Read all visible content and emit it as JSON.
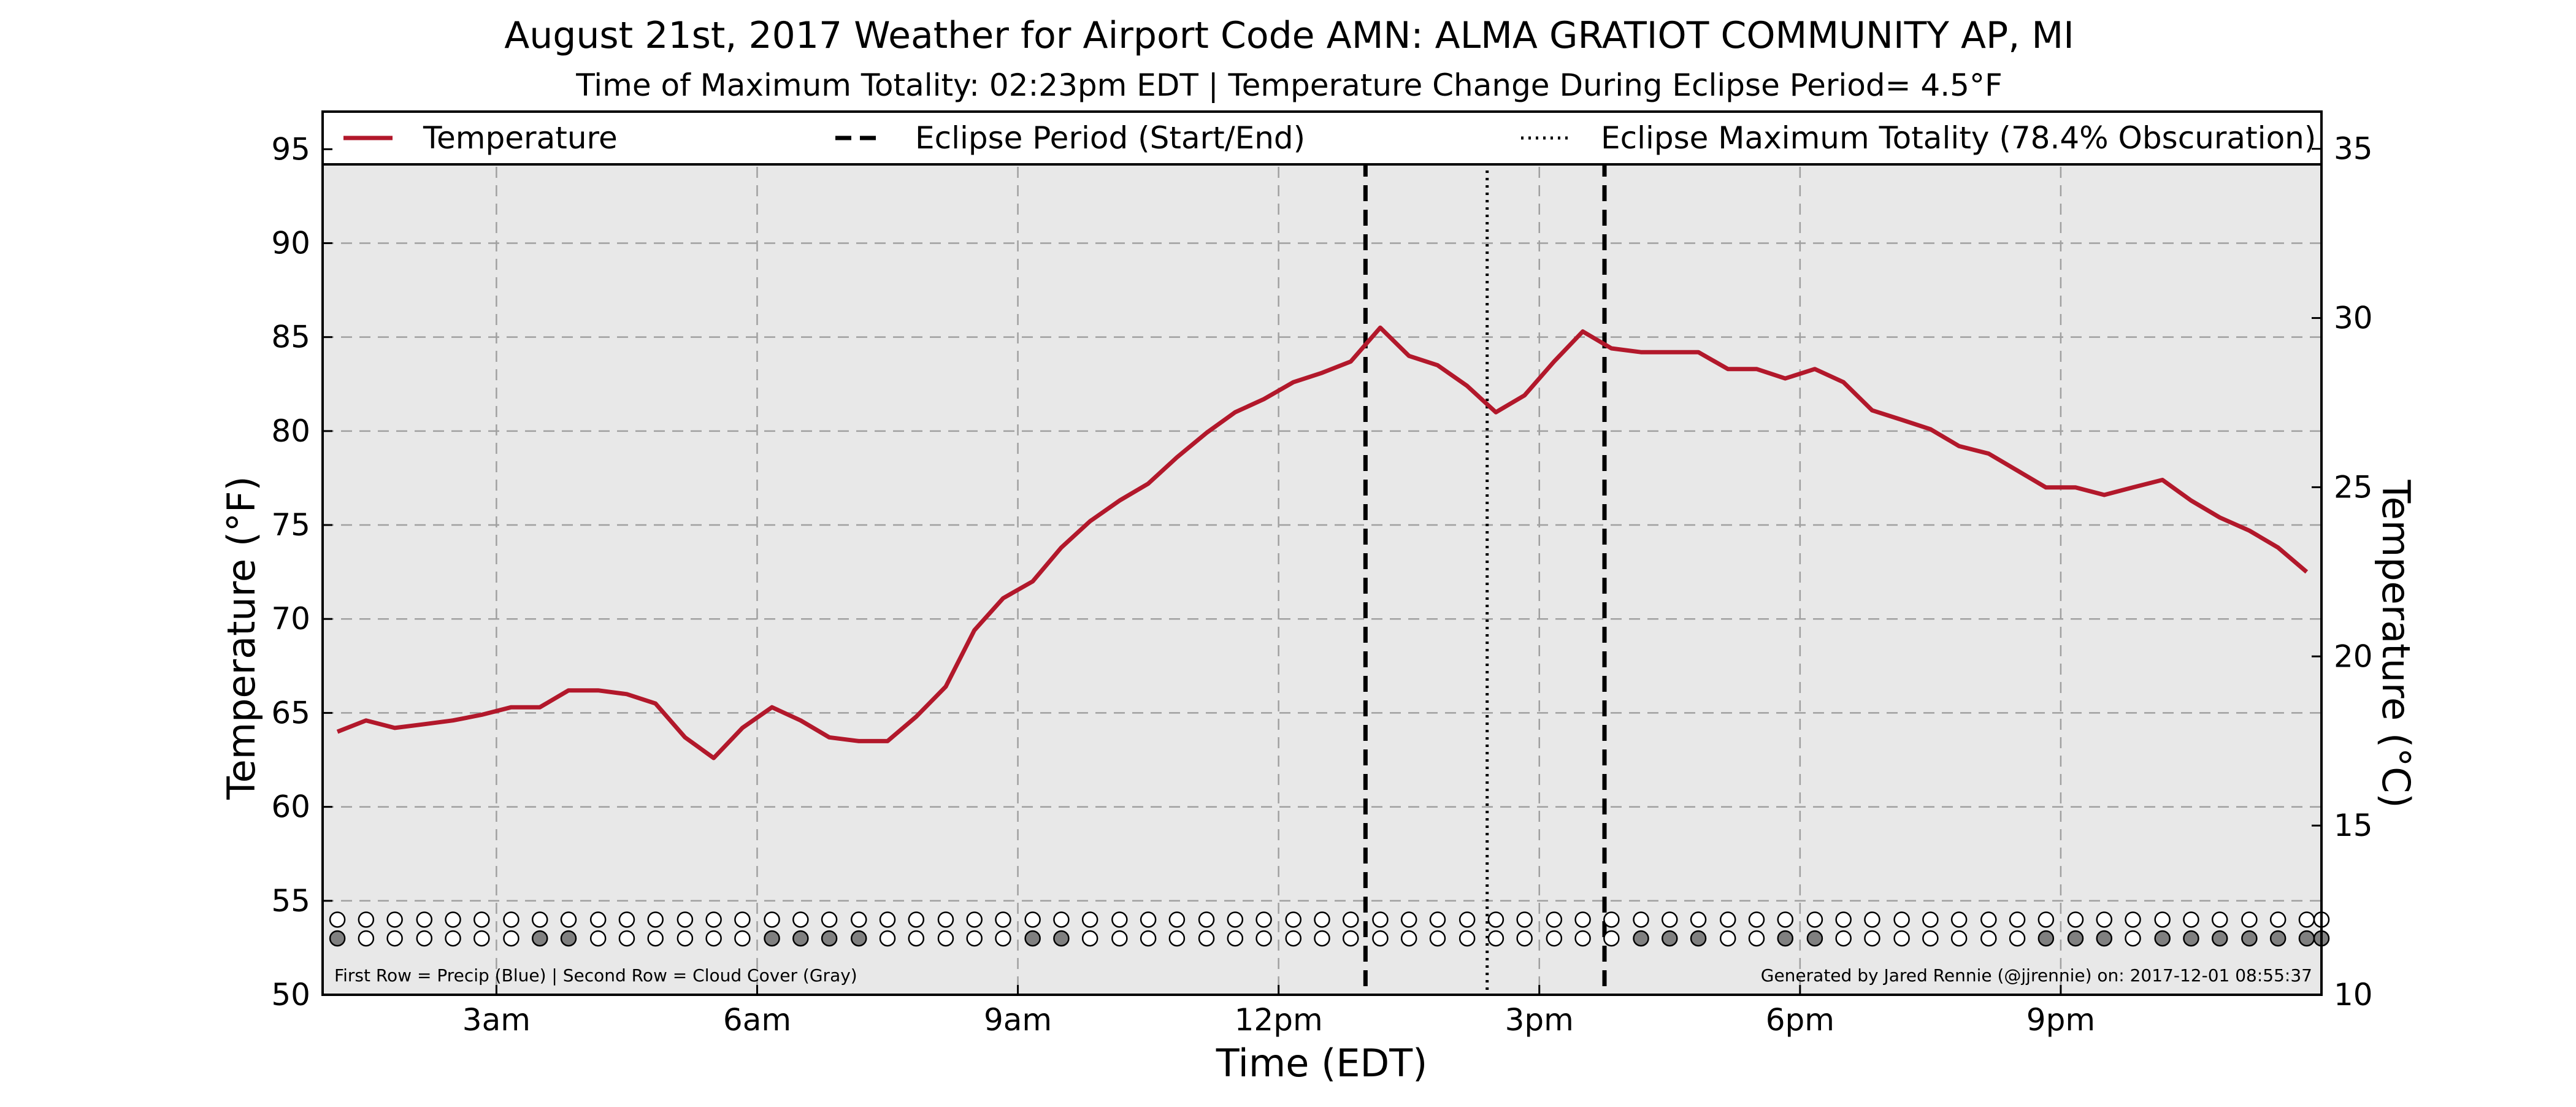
{
  "chart_data": {
    "type": "line",
    "title": "August 21st, 2017 Weather for Airport Code AMN: ALMA GRATIOT COMMUNITY AP, MI",
    "subtitle": "Time of Maximum Totality: 02:23pm EDT | Temperature Change During Eclipse Period= 4.5°F",
    "xlabel": "Time (EDT)",
    "ylabel": "Temperature (°F)",
    "ylabel_right": "Temperature (°C)",
    "x_unit": "hours after midnight EDT",
    "xlim": [
      1.0,
      24.0
    ],
    "ylim": [
      50,
      97
    ],
    "ylim_right": [
      10,
      36.1
    ],
    "x_ticks": [
      {
        "x": 3,
        "label": "3am"
      },
      {
        "x": 6,
        "label": "6am"
      },
      {
        "x": 9,
        "label": "9am"
      },
      {
        "x": 12,
        "label": "12pm"
      },
      {
        "x": 15,
        "label": "3pm"
      },
      {
        "x": 18,
        "label": "6pm"
      },
      {
        "x": 21,
        "label": "9pm"
      }
    ],
    "y_ticks": [
      50,
      55,
      60,
      65,
      70,
      75,
      80,
      85,
      90,
      95
    ],
    "y_ticks_right": [
      10,
      15,
      20,
      25,
      30,
      35
    ],
    "grid": true,
    "legend_position": "top",
    "legend": [
      {
        "label": "Temperature",
        "style": "solid",
        "color": "#b2182b"
      },
      {
        "label": "Eclipse Period (Start/End)",
        "style": "dashed",
        "color": "#000000"
      },
      {
        "label": "Eclipse Maximum Totality (78.4% Obscuration)",
        "style": "dotted",
        "color": "#000000"
      }
    ],
    "series": [
      {
        "name": "Temperature",
        "color": "#b2182b",
        "x": [
          1.17,
          1.5,
          1.83,
          2.17,
          2.5,
          2.83,
          3.17,
          3.5,
          3.83,
          4.17,
          4.5,
          4.83,
          5.17,
          5.5,
          5.83,
          6.17,
          6.5,
          6.83,
          7.17,
          7.5,
          7.83,
          8.17,
          8.5,
          8.83,
          9.17,
          9.5,
          9.83,
          10.17,
          10.5,
          10.83,
          11.17,
          11.5,
          11.83,
          12.17,
          12.5,
          12.83,
          13.17,
          13.5,
          13.83,
          14.17,
          14.5,
          14.83,
          15.17,
          15.5,
          15.83,
          16.17,
          16.5,
          16.83,
          17.17,
          17.5,
          17.83,
          18.17,
          18.5,
          18.83,
          19.17,
          19.5,
          19.83,
          20.17,
          20.5,
          20.83,
          21.17,
          21.5,
          21.83,
          22.17,
          22.5,
          22.83,
          23.17,
          23.5,
          23.83
        ],
        "values": [
          64.0,
          64.6,
          64.2,
          64.4,
          64.6,
          64.9,
          65.3,
          65.3,
          66.2,
          66.2,
          66.0,
          65.5,
          63.7,
          62.6,
          64.2,
          65.3,
          64.6,
          63.7,
          63.5,
          63.5,
          64.8,
          66.4,
          69.4,
          71.1,
          72.0,
          73.8,
          75.2,
          76.3,
          77.2,
          78.6,
          79.9,
          81.0,
          81.7,
          82.6,
          83.1,
          83.7,
          85.5,
          84.0,
          83.5,
          82.4,
          81.0,
          81.9,
          83.7,
          85.3,
          84.4,
          84.2,
          84.2,
          84.2,
          83.3,
          83.3,
          82.8,
          83.3,
          82.6,
          81.1,
          80.6,
          80.1,
          79.2,
          78.8,
          77.9,
          77.0,
          77.0,
          76.6,
          77.0,
          77.4,
          76.3,
          75.4,
          74.7,
          73.8,
          72.5
        ]
      }
    ],
    "eclipse_start_x": 13.0,
    "eclipse_end_x": 15.75,
    "eclipse_max_x": 14.4,
    "markers": {
      "row1_y": 54.0,
      "row2_y": 53.0,
      "x": [
        1.17,
        1.5,
        1.83,
        2.17,
        2.5,
        2.83,
        3.17,
        3.5,
        3.83,
        4.17,
        4.5,
        4.83,
        5.17,
        5.5,
        5.83,
        6.17,
        6.5,
        6.83,
        7.17,
        7.5,
        7.83,
        8.17,
        8.5,
        8.83,
        9.17,
        9.5,
        9.83,
        10.17,
        10.5,
        10.83,
        11.17,
        11.5,
        11.83,
        12.17,
        12.5,
        12.83,
        13.17,
        13.5,
        13.83,
        14.17,
        14.5,
        14.83,
        15.17,
        15.5,
        15.83,
        16.17,
        16.5,
        16.83,
        17.17,
        17.5,
        17.83,
        18.17,
        18.5,
        18.83,
        19.17,
        19.5,
        19.83,
        20.17,
        20.5,
        20.83,
        21.17,
        21.5,
        21.83,
        22.17,
        22.5,
        22.83,
        23.17,
        23.5,
        23.83,
        24.0
      ],
      "cloud_cover_gray": [
        1,
        0,
        0,
        0,
        0,
        0,
        0,
        1,
        1,
        0,
        0,
        0,
        0,
        0,
        0,
        1,
        1,
        1,
        1,
        0,
        0,
        0,
        0,
        0,
        1,
        1,
        0,
        0,
        0,
        0,
        0,
        0,
        0,
        0,
        0,
        0,
        0,
        0,
        0,
        0,
        0,
        0,
        0,
        0,
        0,
        1,
        1,
        1,
        0,
        0,
        1,
        1,
        0,
        0,
        0,
        0,
        0,
        0,
        0,
        1,
        1,
        1,
        0,
        1,
        1,
        1,
        1,
        1,
        1,
        1
      ]
    },
    "footnote_left": "First Row = Precip (Blue) | Second Row = Cloud Cover (Gray)",
    "footnote_right": "Generated by Jared Rennie (@jjrennie) on: 2017-12-01 08:55:37"
  }
}
